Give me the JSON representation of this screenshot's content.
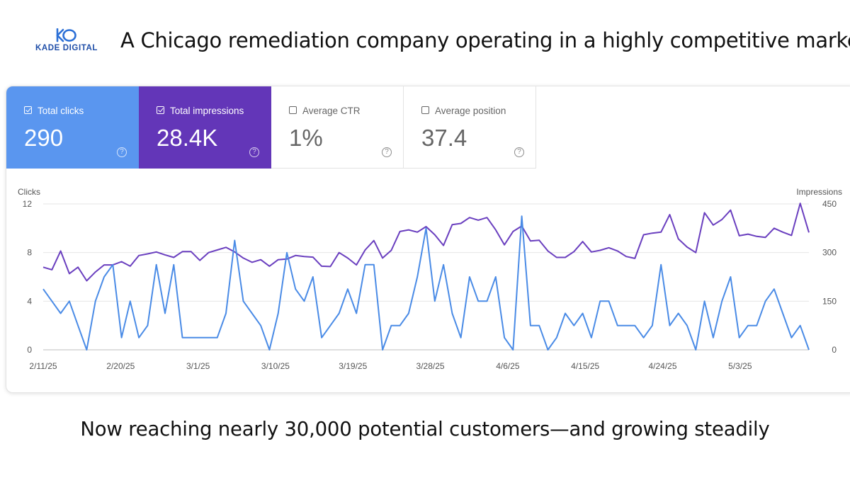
{
  "brand": {
    "logo_text": "KADE DIGITAL"
  },
  "headline": "A Chicago remediation company operating in a highly competitive market",
  "tagline": "Now reaching nearly 30,000 potential customers—and growing steadily",
  "metrics": [
    {
      "label": "Total clicks",
      "value": "290",
      "checked": true,
      "color": "#5a96ef",
      "icon": "help-icon"
    },
    {
      "label": "Total impressions",
      "value": "28.4K",
      "checked": true,
      "color": "#6336b8",
      "icon": "help-icon"
    },
    {
      "label": "Average CTR",
      "value": "1%",
      "checked": false,
      "icon": "help-icon"
    },
    {
      "label": "Average position",
      "value": "37.4",
      "checked": false,
      "icon": "help-icon"
    }
  ],
  "chart_data": {
    "type": "line",
    "ylabel": "Clicks",
    "y2label": "Impressions",
    "ylim": [
      0,
      12
    ],
    "y2lim": [
      0,
      450
    ],
    "y_ticks": [
      0,
      4,
      8,
      12
    ],
    "y2_ticks": [
      0,
      150,
      300,
      450
    ],
    "x_ticks": [
      "2/11/25",
      "2/20/25",
      "3/1/25",
      "3/10/25",
      "3/19/25",
      "3/28/25",
      "4/6/25",
      "4/15/25",
      "4/24/25",
      "5/3/25"
    ],
    "x_range": [
      "2/11/25",
      "5/11/25"
    ],
    "grid": true,
    "legend": "none",
    "series": [
      {
        "axis": "left",
        "color": "#4a8be6",
        "values": [
          5,
          4,
          3,
          4,
          2,
          0,
          4,
          6,
          7,
          1,
          4,
          1,
          2,
          7,
          3,
          7,
          1,
          1,
          1,
          1,
          1,
          3,
          9,
          4,
          3,
          2,
          0,
          3,
          8,
          5,
          4,
          6,
          1,
          2,
          3,
          5,
          3,
          7,
          7,
          0,
          2,
          2,
          3,
          6,
          10,
          4,
          7,
          3,
          1,
          6,
          4,
          4,
          6,
          1,
          0,
          11,
          2,
          2,
          0,
          1,
          3,
          2,
          3,
          1,
          4,
          4,
          2,
          2,
          2,
          1,
          2,
          7,
          2,
          3,
          2,
          0,
          4,
          1,
          4,
          6,
          1,
          2,
          2,
          4,
          5,
          3,
          1,
          2,
          0
        ]
      },
      {
        "axis": "right",
        "color": "#6a3fbf",
        "values": [
          255,
          247,
          305,
          235,
          255,
          213,
          240,
          262,
          262,
          272,
          258,
          291,
          296,
          302,
          293,
          285,
          303,
          303,
          276,
          300,
          308,
          316,
          302,
          283,
          270,
          278,
          258,
          278,
          280,
          291,
          288,
          286,
          258,
          257,
          300,
          283,
          262,
          308,
          337,
          283,
          307,
          365,
          370,
          363,
          380,
          355,
          322,
          386,
          390,
          408,
          400,
          408,
          370,
          324,
          365,
          382,
          336,
          338,
          305,
          285,
          285,
          303,
          334,
          302,
          307,
          315,
          305,
          288,
          282,
          355,
          360,
          363,
          417,
          342,
          317,
          300,
          423,
          385,
          402,
          431,
          352,
          357,
          350,
          347,
          375,
          363,
          353,
          452,
          362
        ]
      }
    ]
  }
}
